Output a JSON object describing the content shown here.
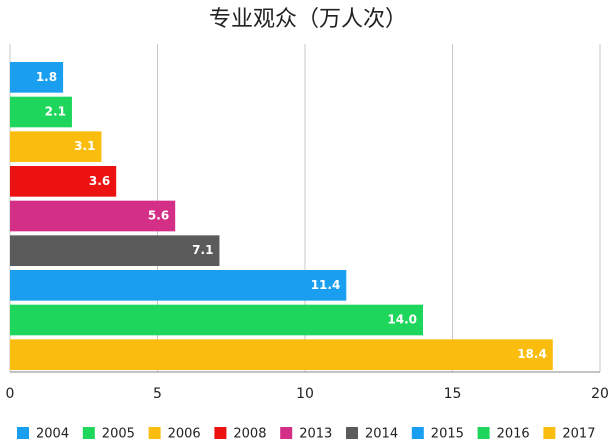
{
  "chart_data": {
    "type": "bar",
    "orientation": "horizontal",
    "title": "专业观众（万人次）",
    "categories": [
      "2004",
      "2005",
      "2006",
      "2008",
      "2013",
      "2014",
      "2015",
      "2016",
      "2017"
    ],
    "values": [
      1.8,
      2.1,
      3.1,
      3.6,
      5.6,
      7.1,
      11.4,
      14.0,
      18.4
    ],
    "value_labels": [
      "1.8",
      "2.1",
      "3.1",
      "3.6",
      "5.6",
      "7.1",
      "11.4",
      "14.0",
      "18.4"
    ],
    "colors": [
      "#1a9ff0",
      "#1fd65c",
      "#fbbd0d",
      "#ec1212",
      "#d42f86",
      "#5b5b5b",
      "#1a9ff0",
      "#1fd65c",
      "#fbbd0d"
    ],
    "xlim": [
      0,
      20
    ],
    "xticks": [
      0,
      5,
      10,
      15,
      20
    ],
    "grid": true,
    "legend": "bottom"
  }
}
